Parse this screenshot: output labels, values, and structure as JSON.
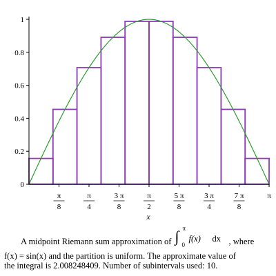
{
  "chart_data": {
    "type": "bar",
    "function": "sin(x)",
    "method": "midpoint",
    "x_range": [
      0,
      3.14159265
    ],
    "ylim": [
      0,
      1
    ],
    "xlabel": "x",
    "ylabel": "",
    "subintervals": 10,
    "bar_edges": [
      0,
      0.314159,
      0.628319,
      0.942478,
      1.256637,
      1.570796,
      1.884956,
      2.199115,
      2.513274,
      2.827433,
      3.141593
    ],
    "bar_heights": [
      0.156434,
      0.45399,
      0.707107,
      0.891007,
      0.987688,
      0.987688,
      0.891007,
      0.707107,
      0.45399,
      0.156434
    ],
    "y_ticks": [
      {
        "value": 0,
        "label": "0"
      },
      {
        "value": 0.2,
        "label": "0.2"
      },
      {
        "value": 0.4,
        "label": "0.4"
      },
      {
        "value": 0.6,
        "label": "0.6"
      },
      {
        "value": 0.8,
        "label": "0.8"
      },
      {
        "value": 1,
        "label": "1"
      }
    ],
    "x_ticks": [
      {
        "value": 0.392699,
        "num": "π",
        "den": "8"
      },
      {
        "value": 0.785398,
        "num": "π",
        "den": "4"
      },
      {
        "value": 1.178097,
        "num": "3 π",
        "den": "8"
      },
      {
        "value": 1.570796,
        "num": "π",
        "den": "2"
      },
      {
        "value": 1.963495,
        "num": "5 π",
        "den": "8"
      },
      {
        "value": 2.356194,
        "num": "3 π",
        "den": "4"
      },
      {
        "value": 2.748894,
        "num": "7 π",
        "den": "8"
      },
      {
        "value": 3.141593,
        "num": "π",
        "den": ""
      }
    ],
    "colors": {
      "bars": "#8a3ab9",
      "curve": "#2e9a2e",
      "axes": "#000000"
    }
  },
  "caption": {
    "line1_pre": "A midpoint Riemann sum approximation of",
    "integral_lower": "0",
    "integral_upper": "π",
    "integrand": "f(x)",
    "dx": "dx",
    "line1_post": ", where",
    "line2": "f(x) = sin(x) and the partition is uniform.  The approximate value of",
    "line3": "the integral is 2.008248409.  Number of subintervals used: 10."
  }
}
